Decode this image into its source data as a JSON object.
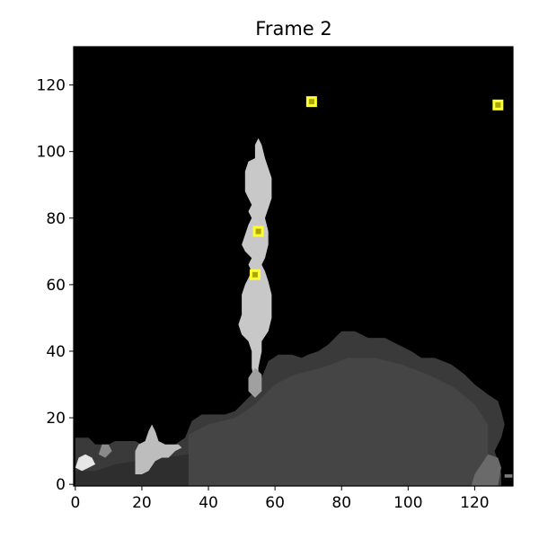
{
  "figure": {
    "title": "Frame 2"
  },
  "plot": {
    "background_color": "#000000",
    "x_range": [
      -0.5,
      131.5
    ],
    "y_range": [
      -0.5,
      131.5
    ],
    "x_ticks": [
      0,
      20,
      40,
      60,
      80,
      100,
      120
    ],
    "y_ticks": [
      0,
      20,
      40,
      60,
      80,
      100,
      120
    ],
    "x_tick_labels": [
      "0",
      "20",
      "40",
      "60",
      "80",
      "100",
      "120"
    ],
    "y_tick_labels": [
      "0",
      "20",
      "40",
      "60",
      "80",
      "100",
      "120"
    ]
  },
  "image_content": {
    "colors": {
      "plume": "#c8c8c8",
      "plume_edge": "#a0a0a0",
      "cloud_dark": "#3a3a3a",
      "cloud_mid": "#454545",
      "cloud_edge": "#2e2e2e",
      "blob_light": "#bdbdbd",
      "blob_bright": "#e6e6e6",
      "marker": "#ffff33",
      "marker_inner": "#a8a800"
    },
    "markers": [
      {
        "x": 71,
        "y": 115
      },
      {
        "x": 127,
        "y": 114
      },
      {
        "x": 55,
        "y": 76
      },
      {
        "x": 54,
        "y": 63
      }
    ]
  }
}
